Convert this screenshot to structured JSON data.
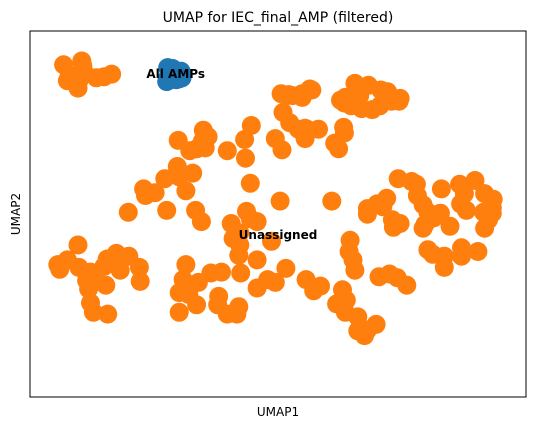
{
  "chart_data": {
    "type": "scatter",
    "title": "UMAP for IEC_final_AMP (filtered)",
    "xlabel": "UMAP1",
    "ylabel": "UMAP2",
    "xlim": [
      0,
      100
    ],
    "ylim": [
      0,
      100
    ],
    "xticks": false,
    "yticks": false,
    "grid": false,
    "series": [
      {
        "name": "All AMPs",
        "color": "#1f77b4",
        "points": [
          [
            26.82,
            92.32
          ],
          [
            27.83,
            92.05
          ],
          [
            29.64,
            91.24
          ],
          [
            29.04,
            90.43
          ],
          [
            29.84,
            89.35
          ],
          [
            27.42,
            88.81
          ],
          [
            26.82,
            89.35
          ],
          [
            29.24,
            89.08
          ],
          [
            26.61,
            88.27
          ],
          [
            28.63,
            88.81
          ]
        ]
      },
      {
        "name": "Unassigned",
        "color": "#ff7f0e",
        "points": [
          [
            4.95,
            93.13
          ],
          [
            8.79,
            94.21
          ],
          [
            8.99,
            92.86
          ],
          [
            9.39,
            90.7
          ],
          [
            6.16,
            90.16
          ],
          [
            13.43,
            89.62
          ],
          [
            15.04,
            90.43
          ],
          [
            11.82,
            89.35
          ],
          [
            5.76,
            88.54
          ],
          [
            8.18,
            88.54
          ],
          [
            7.98,
            86.39
          ],
          [
            56.71,
            86.12
          ],
          [
            50.65,
            84.77
          ],
          [
            51.86,
            84.23
          ],
          [
            52.26,
            84.5
          ],
          [
            55.09,
            84.77
          ],
          [
            57.11,
            85.85
          ],
          [
            53.07,
            84.23
          ],
          [
            55.09,
            83.69
          ],
          [
            66.16,
            87.74
          ],
          [
            68.99,
            87.2
          ],
          [
            71.61,
            85.85
          ],
          [
            73.03,
            85.31
          ],
          [
            75.65,
            83.42
          ],
          [
            73.84,
            82.61
          ],
          [
            75.45,
            82.61
          ],
          [
            67.17,
            84.23
          ],
          [
            64.14,
            83.69
          ],
          [
            66.76,
            82.07
          ],
          [
            63.12,
            82.88
          ],
          [
            63.94,
            82.07
          ],
          [
            65.35,
            81.26
          ],
          [
            67.58,
            80.45
          ],
          [
            69.8,
            80.18
          ],
          [
            71.41,
            81.26
          ],
          [
            51.05,
            79.37
          ],
          [
            52.46,
            76.4
          ],
          [
            54.28,
            74.5
          ],
          [
            55.69,
            74.77
          ],
          [
            58.51,
            74.5
          ],
          [
            56.1,
            74.5
          ],
          [
            55.69,
            71.8
          ],
          [
            63.78,
            75.04
          ],
          [
            63.94,
            73.42
          ],
          [
            62.73,
            68.83
          ],
          [
            61.92,
            70.45
          ],
          [
            49.44,
            71.8
          ],
          [
            44.39,
            75.58
          ],
          [
            42.98,
            71.53
          ],
          [
            39.35,
            68.29
          ],
          [
            43.18,
            66.13
          ],
          [
            50.85,
            68.56
          ],
          [
            34.3,
            74.23
          ],
          [
            35.31,
            72.34
          ],
          [
            34.1,
            70.99
          ],
          [
            34.7,
            69.1
          ],
          [
            32.89,
            68.83
          ],
          [
            29.04,
            71.26
          ],
          [
            31.47,
            68.29
          ],
          [
            28.84,
            63.72
          ],
          [
            32.08,
            61.83
          ],
          [
            29.24,
            60.75
          ],
          [
            30.65,
            56.7
          ],
          [
            26.21,
            60.21
          ],
          [
            21.77,
            57.24
          ],
          [
            22.17,
            55.35
          ],
          [
            24.19,
            56.16
          ],
          [
            18.54,
            50.49
          ],
          [
            26.61,
            51.03
          ],
          [
            32.69,
            51.03
          ],
          [
            33.9,
            47.79
          ],
          [
            40.16,
            47.25
          ],
          [
            43.38,
            50.76
          ],
          [
            44.19,
            48.6
          ],
          [
            41.97,
            44.55
          ],
          [
            40.56,
            42.93
          ],
          [
            45.6,
            47.79
          ],
          [
            50.45,
            53.73
          ],
          [
            44.19,
            58.86
          ],
          [
            61.31,
            53.73
          ],
          [
            75.25,
            60.21
          ],
          [
            78.07,
            59.4
          ],
          [
            84.32,
            57.24
          ],
          [
            79.08,
            58.59
          ],
          [
            72.83,
            54.54
          ],
          [
            70.81,
            52.92
          ],
          [
            68.79,
            51.57
          ],
          [
            68.79,
            49.95
          ],
          [
            72.02,
            52.12
          ],
          [
            74.04,
            48.33
          ],
          [
            75.65,
            47.25
          ],
          [
            74.24,
            46.17
          ],
          [
            79.28,
            55.35
          ],
          [
            80.49,
            52.65
          ],
          [
            81.5,
            50.49
          ],
          [
            82.71,
            48.87
          ],
          [
            84.12,
            50.22
          ],
          [
            88.16,
            58.59
          ],
          [
            91.39,
            59.67
          ],
          [
            89.17,
            55.89
          ],
          [
            93.4,
            55.89
          ],
          [
            95.22,
            54.27
          ],
          [
            88.36,
            52.92
          ],
          [
            89.57,
            51.03
          ],
          [
            93.2,
            50.49
          ],
          [
            95.02,
            51.84
          ],
          [
            95.02,
            50.22
          ],
          [
            94.22,
            48.33
          ],
          [
            93.4,
            45.9
          ],
          [
            86.14,
            46.44
          ],
          [
            80.89,
            46.98
          ],
          [
            80.49,
            45.9
          ],
          [
            65.15,
            42.39
          ],
          [
            64.94,
            39.15
          ],
          [
            65.75,
            36.72
          ],
          [
            66.16,
            33.75
          ],
          [
            71.21,
            31.86
          ],
          [
            73.43,
            32.67
          ],
          [
            75.04,
            31.59
          ],
          [
            77.06,
            29.43
          ],
          [
            81.5,
            39.69
          ],
          [
            82.51,
            38.34
          ],
          [
            84.93,
            37.8
          ],
          [
            88.56,
            40.23
          ],
          [
            88.56,
            37.8
          ],
          [
            92.0,
            39.15
          ],
          [
            84.93,
            34.56
          ],
          [
            48.63,
            42.12
          ],
          [
            41.97,
            41.04
          ],
          [
            41.77,
            38.07
          ],
          [
            45.6,
            36.72
          ],
          [
            51.66,
            34.29
          ],
          [
            47.83,
            31.05
          ],
          [
            49.44,
            30.24
          ],
          [
            45.6,
            28.62
          ],
          [
            42.17,
            32.94
          ],
          [
            38.14,
            33.21
          ],
          [
            35.91,
            32.94
          ],
          [
            30.65,
            35.37
          ],
          [
            30.06,
            31.05
          ],
          [
            33.28,
            30.24
          ],
          [
            31.27,
            26.73
          ],
          [
            29.24,
            27.27
          ],
          [
            37.54,
            26.19
          ],
          [
            32.89,
            23.76
          ],
          [
            29.24,
            21.6
          ],
          [
            37.34,
            23.76
          ],
          [
            41.77,
            23.22
          ],
          [
            41.37,
            21.06
          ],
          [
            39.35,
            21.06
          ],
          [
            55.9,
            31.05
          ],
          [
            58.92,
            29.16
          ],
          [
            57.51,
            27.81
          ],
          [
            63.54,
            28.08
          ],
          [
            62.32,
            24.03
          ],
          [
            64.14,
            21.6
          ],
          [
            64.34,
            25.11
          ],
          [
            66.76,
            20.25
          ],
          [
            66.76,
            16.2
          ],
          [
            68.18,
            14.85
          ],
          [
            68.79,
            16.47
          ],
          [
            70.61,
            18.09
          ],
          [
            7.98,
            41.04
          ],
          [
            5.76,
            36.72
          ],
          [
            3.74,
            35.37
          ],
          [
            4.14,
            34.02
          ],
          [
            8.18,
            34.56
          ],
          [
            10.6,
            33.21
          ],
          [
            13.43,
            34.83
          ],
          [
            9.79,
            30.78
          ],
          [
            11.41,
            31.05
          ],
          [
            10.2,
            28.35
          ],
          [
            13.83,
            29.43
          ],
          [
            16.85,
            33.75
          ],
          [
            18.65,
            37.8
          ],
          [
            20.88,
            34.56
          ],
          [
            21.06,
            30.51
          ],
          [
            16.04,
            38.61
          ],
          [
            14.12,
            36.99
          ],
          [
            10.6,
            24.3
          ],
          [
            11.21,
            21.6
          ],
          [
            14.23,
            21.06
          ]
        ]
      }
    ],
    "annotations": [
      {
        "text": "All AMPs",
        "x": 28.5,
        "y": 90.4
      },
      {
        "text": "Unassigned",
        "x": 50.0,
        "y": 44.0
      }
    ]
  }
}
